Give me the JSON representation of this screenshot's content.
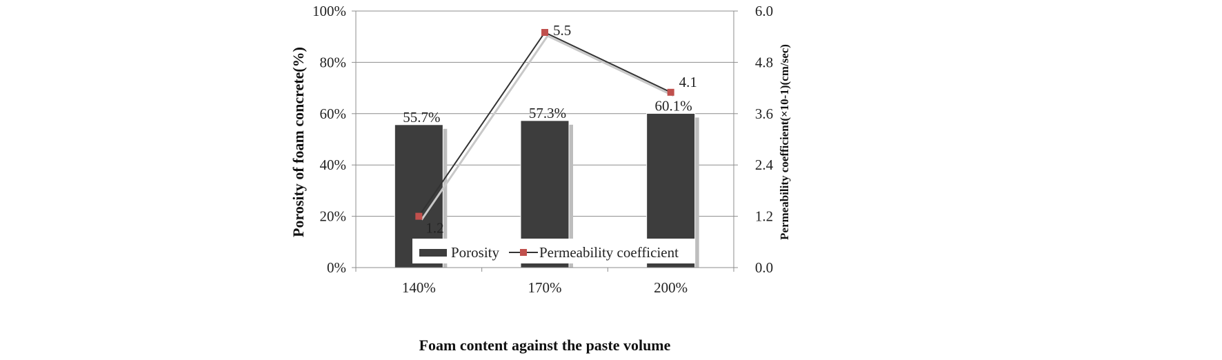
{
  "chart_data": {
    "type": "bar+line",
    "title": "",
    "xlabel": "Foam content against the paste volume",
    "ylabel": "Porosity of foam concrete(%)",
    "y2label": "Permeability  coefficient(×10-1)(cm/sec)",
    "categories": [
      "140%",
      "170%",
      "200%"
    ],
    "ylim": [
      0,
      100
    ],
    "y_ticks": [
      "0%",
      "20%",
      "40%",
      "60%",
      "80%",
      "100%"
    ],
    "y2lim": [
      0,
      6
    ],
    "y2_ticks": [
      "0.0",
      "1.2",
      "2.4",
      "3.6",
      "4.8",
      "6.0"
    ],
    "grid": true,
    "legend_position": "bottom-right inside",
    "series": [
      {
        "name": "Porosity",
        "type": "bar",
        "axis": "left",
        "values": [
          55.7,
          57.3,
          60.1
        ],
        "labels": [
          "55.7%",
          "57.3%",
          "60.1%"
        ],
        "color": "#3d3d3d"
      },
      {
        "name": "Permeability coefficient",
        "type": "line",
        "axis": "right",
        "values": [
          1.2,
          5.5,
          4.1
        ],
        "labels": [
          "1.2",
          "5.5",
          "4.1"
        ],
        "color": "#333333",
        "marker_color": "#c0504d"
      }
    ]
  }
}
